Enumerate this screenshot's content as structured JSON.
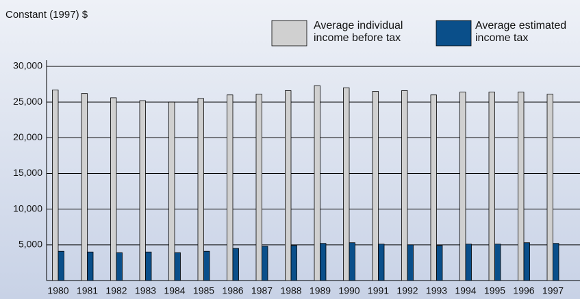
{
  "chart_data": {
    "type": "bar",
    "title": "Constant (1997) $",
    "categories": [
      "1980",
      "1981",
      "1982",
      "1983",
      "1984",
      "1985",
      "1986",
      "1987",
      "1988",
      "1989",
      "1990",
      "1991",
      "1992",
      "1993",
      "1994",
      "1995",
      "1996",
      "1997"
    ],
    "series": [
      {
        "name": "Average individual income before tax",
        "color": "#d0d0d0",
        "values": [
          26700,
          26200,
          25600,
          25200,
          25000,
          25500,
          26000,
          26100,
          26600,
          27300,
          27000,
          26500,
          26600,
          26000,
          26400,
          26400,
          26400,
          26100
        ]
      },
      {
        "name": "Average estimated income tax",
        "color": "#0a4f8a",
        "values": [
          4100,
          4000,
          3900,
          4000,
          3900,
          4100,
          4500,
          4800,
          4900,
          5200,
          5300,
          5100,
          5000,
          4900,
          5100,
          5100,
          5300,
          5200
        ]
      }
    ],
    "ylim": [
      0,
      30000
    ],
    "yticks": [
      {
        "value": 5000,
        "label": "5,000"
      },
      {
        "value": 10000,
        "label": "10,000"
      },
      {
        "value": 15000,
        "label": "15,000"
      },
      {
        "value": 20000,
        "label": "20,000"
      },
      {
        "value": 25000,
        "label": "25,000"
      },
      {
        "value": 30000,
        "label": "30,000"
      }
    ],
    "grid": true
  }
}
